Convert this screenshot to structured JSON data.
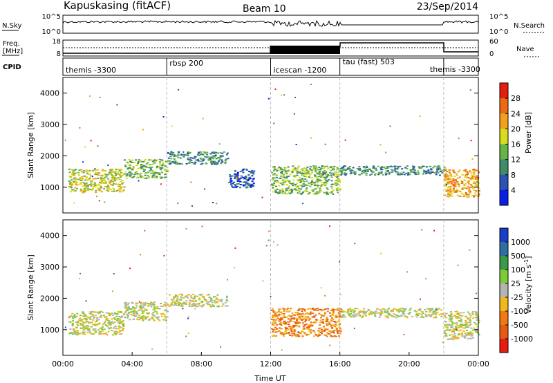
{
  "header": {
    "station": "Kapuskasing (fitACF)",
    "beam": "Beam 10",
    "date": "23/Sep/2014"
  },
  "noise_panel": {
    "left_label": "N.Sky",
    "right_label": "N.Search",
    "left_ticks": [
      "10^5",
      "10^0"
    ],
    "right_ticks": [
      "10^5",
      "10^0"
    ]
  },
  "freq_panel": {
    "left_label_1": "Freq.",
    "left_label_2": "[MHz]",
    "right_label": "Nave",
    "left_ticks": [
      "18",
      "8"
    ],
    "right_ticks": [
      "60",
      "0"
    ]
  },
  "cpid_panel": {
    "label": "CPID",
    "segments": [
      {
        "label": "themis -3300",
        "start_hour": 0,
        "end_hour": 6
      },
      {
        "label": "rbsp 200",
        "start_hour": 6,
        "end_hour": 12
      },
      {
        "label": "icescan -1200",
        "start_hour": 12,
        "end_hour": 16
      },
      {
        "label": "tau (fast) 503",
        "start_hour": 16,
        "end_hour": 22
      },
      {
        "label": "themis -3300",
        "start_hour": 22,
        "end_hour": 24
      }
    ]
  },
  "xaxis": {
    "label": "Time UT",
    "ticks": [
      "00:00",
      "04:00",
      "08:00",
      "12:00",
      "16:00",
      "20:00",
      "00:00"
    ]
  },
  "chart_data": [
    {
      "type": "heatmap",
      "title": "",
      "xlabel": "Time UT",
      "ylabel": "Slant Range [km]",
      "x_range_hours": [
        0,
        24
      ],
      "ylim": [
        180,
        4500
      ],
      "y_ticks": [
        1000,
        2000,
        3000,
        4000
      ],
      "colorbar": {
        "label": "Power [dB]",
        "ticks": [
          "4",
          "8",
          "12",
          "16",
          "20",
          "24",
          "28"
        ],
        "colors": [
          "#0a1ee6",
          "#2c52b5",
          "#3f8a6a",
          "#66b446",
          "#d8dc1e",
          "#f2a21a",
          "#ee6a10",
          "#e61e10"
        ]
      },
      "regions": [
        {
          "t0": 0.3,
          "t1": 3.5,
          "r0": 850,
          "r1": 1600,
          "value": 4
        },
        {
          "t0": 3.5,
          "t1": 6.0,
          "r0": 1300,
          "r1": 1900,
          "value": 3
        },
        {
          "t0": 6.0,
          "t1": 9.5,
          "r0": 1750,
          "r1": 2150,
          "value": 2
        },
        {
          "t0": 9.5,
          "t1": 11.0,
          "r0": 1000,
          "r1": 1600,
          "value": 1
        },
        {
          "t0": 12.0,
          "t1": 16.0,
          "r0": 800,
          "r1": 1700,
          "value": 3
        },
        {
          "t0": 16.0,
          "t1": 22.0,
          "r0": 1400,
          "r1": 1700,
          "value": 2
        },
        {
          "t0": 22.0,
          "t1": 24.0,
          "r0": 700,
          "r1": 1600,
          "value": 5
        }
      ]
    },
    {
      "type": "heatmap",
      "title": "",
      "xlabel": "Time UT",
      "ylabel": "Slant Range [km]",
      "x_range_hours": [
        0,
        24
      ],
      "ylim": [
        180,
        4500
      ],
      "y_ticks": [
        1000,
        2000,
        3000,
        4000
      ],
      "colorbar": {
        "label": "Velocity [m s^-1]",
        "ticks": [
          "1000",
          "500",
          "100",
          "25",
          "-25",
          "-100",
          "-500",
          "-1000"
        ],
        "colors": [
          "#1a3ec8",
          "#2e6ea0",
          "#3a9a4a",
          "#7ccc3a",
          "#b4b4b4",
          "#f0b818",
          "#f07a10",
          "#e85a10",
          "#e61e10"
        ]
      },
      "regions": [
        {
          "t0": 0.3,
          "t1": 3.5,
          "r0": 850,
          "r1": 1600,
          "value": 4
        },
        {
          "t0": 3.5,
          "t1": 6.0,
          "r0": 1300,
          "r1": 1900,
          "value": 4
        },
        {
          "t0": 6.0,
          "t1": 9.5,
          "r0": 1750,
          "r1": 2150,
          "value": 4
        },
        {
          "t0": 12.0,
          "t1": 16.0,
          "r0": 800,
          "r1": 1700,
          "value": 6
        },
        {
          "t0": 16.0,
          "t1": 22.0,
          "r0": 1400,
          "r1": 1700,
          "value": 4
        },
        {
          "t0": 22.0,
          "t1": 24.0,
          "r0": 700,
          "r1": 1600,
          "value": 4
        }
      ]
    }
  ]
}
